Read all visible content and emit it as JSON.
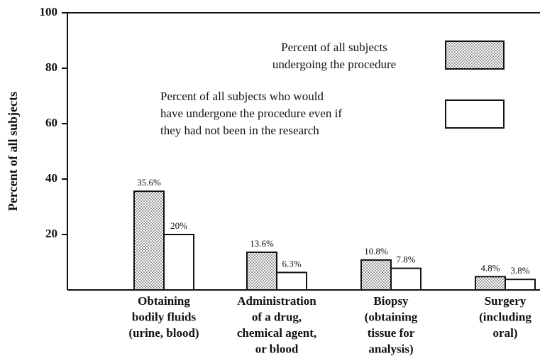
{
  "chart_data": {
    "type": "bar",
    "y_label": "Percent of all subjects",
    "categories": [
      [
        "Obtaining",
        "bodily fluids",
        "(urine, blood)"
      ],
      [
        "Administration",
        "of a drug,",
        "chemical agent,",
        "or blood"
      ],
      [
        "Biopsy",
        "(obtaining",
        "tissue for",
        "analysis)"
      ],
      [
        "Surgery",
        "(including",
        "oral)"
      ]
    ],
    "series": [
      {
        "name": [
          "Percent of all subjects",
          "undergoing the procedure"
        ],
        "color": "#111111",
        "pattern": "dots",
        "values": [
          35.6,
          13.6,
          10.8,
          4.8
        ],
        "value_labels": [
          "35.6%",
          "13.6%",
          "10.8%",
          "4.8%"
        ]
      },
      {
        "name": [
          "Percent of all subjects who would",
          "have undergone the procedure even if",
          "they had not been in the research"
        ],
        "color": "#111111",
        "pattern": "none",
        "values": [
          20,
          6.3,
          7.8,
          3.8
        ],
        "value_labels": [
          "20%",
          "6.3%",
          "7.8%",
          "3.8%"
        ]
      }
    ],
    "ylim": [
      0,
      100
    ],
    "yticks": [
      20,
      40,
      60,
      80,
      100
    ],
    "grid": false
  }
}
